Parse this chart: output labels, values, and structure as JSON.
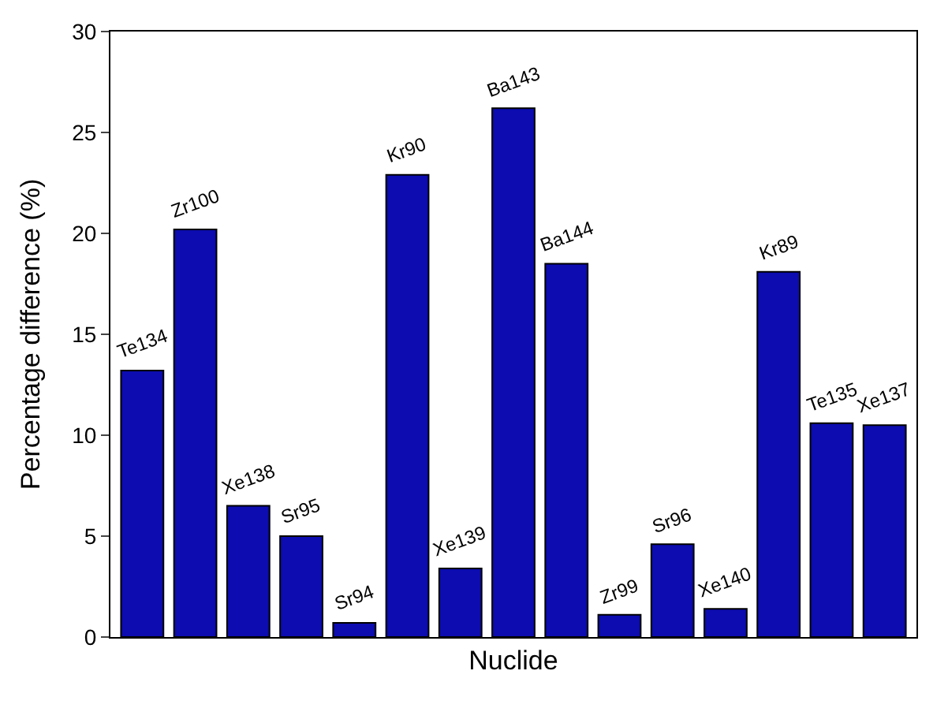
{
  "chart_data": {
    "type": "bar",
    "xlabel": "Nuclide",
    "ylabel": "Percentage difference (%)",
    "categories": [
      "Te134",
      "Zr100",
      "Xe138",
      "Sr95",
      "Sr94",
      "Kr90",
      "Xe139",
      "Ba143",
      "Ba144",
      "Zr99",
      "Sr96",
      "Xe140",
      "Kr89",
      "Te135",
      "Xe137"
    ],
    "values": [
      13.2,
      20.2,
      6.5,
      5.0,
      0.7,
      22.9,
      3.4,
      26.2,
      18.5,
      1.1,
      4.6,
      1.4,
      18.1,
      10.6,
      10.5
    ],
    "color": "#0c0cb0",
    "ylim": [
      0,
      30
    ],
    "yticks": [
      0,
      5,
      10,
      15,
      20,
      25,
      30
    ],
    "tick_labels": "y"
  }
}
